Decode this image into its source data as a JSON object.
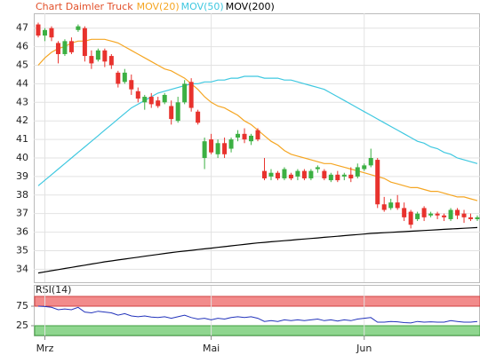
{
  "chart_data": {
    "type": "candlestick",
    "title": "Chart Daimler Truck",
    "categories": [
      null,
      "Mrz",
      null,
      null,
      null,
      null,
      null,
      null,
      null,
      null,
      null,
      null,
      null,
      null,
      null,
      null,
      null,
      null,
      null,
      null,
      null,
      null,
      null,
      null,
      null,
      null,
      "Mai",
      null,
      null,
      null,
      null,
      null,
      null,
      null,
      null,
      null,
      null,
      null,
      null,
      null,
      null,
      null,
      null,
      null,
      null,
      null,
      null,
      null,
      null,
      "Jun",
      null,
      null,
      null,
      null,
      null,
      null,
      null,
      null,
      null,
      null,
      null,
      null,
      null,
      null,
      null,
      null,
      null
    ],
    "open": [
      47.2,
      46.6,
      47.0,
      46.2,
      45.6,
      46.3,
      46.9,
      47.0,
      45.5,
      45.3,
      45.8,
      45.5,
      44.6,
      44.1,
      44.2,
      43.6,
      43.0,
      43.3,
      43.1,
      43.0,
      42.8,
      42.0,
      43.0,
      44.1,
      42.5,
      40.0,
      41.0,
      40.2,
      40.8,
      40.5,
      41.1,
      41.3,
      40.9,
      41.5,
      39.3,
      39.0,
      39.2,
      38.9,
      39.1,
      39.0,
      39.3,
      38.9,
      39.4,
      39.3,
      38.8,
      39.1,
      39.0,
      39.1,
      39.0,
      39.4,
      39.6,
      39.9,
      37.5,
      37.3,
      37.6,
      37.3,
      37.1,
      36.7,
      37.3,
      36.9,
      37.0,
      36.9,
      36.7,
      37.2,
      37.0,
      36.8,
      36.7
    ],
    "high": [
      47.3,
      47.0,
      47.1,
      46.3,
      46.4,
      46.5,
      47.2,
      47.1,
      45.8,
      45.9,
      45.9,
      45.6,
      44.7,
      44.8,
      44.5,
      43.8,
      43.4,
      43.5,
      43.3,
      43.5,
      43.1,
      43.3,
      44.2,
      44.3,
      42.6,
      41.1,
      41.3,
      41.0,
      41.1,
      41.1,
      41.5,
      41.6,
      41.3,
      41.6,
      40.0,
      39.4,
      39.3,
      39.5,
      39.2,
      39.4,
      39.4,
      39.4,
      39.6,
      39.4,
      39.2,
      39.3,
      39.2,
      39.5,
      39.7,
      39.7,
      40.5,
      40.0,
      37.9,
      37.8,
      38.0,
      37.6,
      37.2,
      37.1,
      37.4,
      37.1,
      37.1,
      37.0,
      37.3,
      37.3,
      37.2,
      37.0,
      36.9
    ],
    "low": [
      46.5,
      46.3,
      46.3,
      45.1,
      45.5,
      45.6,
      46.8,
      45.2,
      44.8,
      45.2,
      44.9,
      44.8,
      43.8,
      44.0,
      43.4,
      43.0,
      42.6,
      42.7,
      42.7,
      42.9,
      41.8,
      41.9,
      42.9,
      42.5,
      41.8,
      39.4,
      40.2,
      40.0,
      40.0,
      40.3,
      40.9,
      40.8,
      40.7,
      40.9,
      38.8,
      38.8,
      38.8,
      38.8,
      38.8,
      38.8,
      38.8,
      38.8,
      39.2,
      38.8,
      38.7,
      38.7,
      38.8,
      38.7,
      38.9,
      39.3,
      39.5,
      37.3,
      37.1,
      37.2,
      37.2,
      36.6,
      36.2,
      36.6,
      36.6,
      36.8,
      36.7,
      36.6,
      36.6,
      36.7,
      36.5,
      36.6,
      36.6
    ],
    "close": [
      46.6,
      46.9,
      46.5,
      45.6,
      46.3,
      45.7,
      47.1,
      45.5,
      45.1,
      45.8,
      45.2,
      45.0,
      44.0,
      44.6,
      43.7,
      43.2,
      43.3,
      42.9,
      42.8,
      43.4,
      42.1,
      43.0,
      44.0,
      42.7,
      41.9,
      40.9,
      40.3,
      40.8,
      40.2,
      41.0,
      41.3,
      41.0,
      41.2,
      41.0,
      38.9,
      39.2,
      38.9,
      39.4,
      38.9,
      39.3,
      38.9,
      39.3,
      39.5,
      38.9,
      39.1,
      38.8,
      39.1,
      38.9,
      39.5,
      39.6,
      40.0,
      37.5,
      37.2,
      37.6,
      37.3,
      36.8,
      36.4,
      37.0,
      36.8,
      37.0,
      36.9,
      36.8,
      37.2,
      36.9,
      36.8,
      36.7,
      36.8
    ],
    "up_color": "#3cb043",
    "down_color": "#e8322d",
    "lines": [
      {
        "name": "MOV(20)",
        "color": "#f5a623",
        "values": [
          45.0,
          45.4,
          45.7,
          45.9,
          46.0,
          46.2,
          46.3,
          46.3,
          46.4,
          46.4,
          46.4,
          46.3,
          46.2,
          46.0,
          45.8,
          45.6,
          45.4,
          45.2,
          45.0,
          44.8,
          44.7,
          44.5,
          44.3,
          44.0,
          43.7,
          43.3,
          43.0,
          42.8,
          42.7,
          42.5,
          42.3,
          42.0,
          41.8,
          41.5,
          41.2,
          40.9,
          40.7,
          40.4,
          40.2,
          40.1,
          40.0,
          39.9,
          39.8,
          39.7,
          39.7,
          39.6,
          39.5,
          39.4,
          39.3,
          39.2,
          39.1,
          39.0,
          38.9,
          38.7,
          38.6,
          38.5,
          38.4,
          38.4,
          38.3,
          38.2,
          38.2,
          38.1,
          38.0,
          37.9,
          37.9,
          37.8,
          37.7
        ]
      },
      {
        "name": "MOV(50)",
        "color": "#3fc8e0",
        "values": [
          38.5,
          38.8,
          39.1,
          39.4,
          39.7,
          40.0,
          40.3,
          40.6,
          40.9,
          41.2,
          41.5,
          41.8,
          42.1,
          42.4,
          42.7,
          42.9,
          43.1,
          43.3,
          43.5,
          43.6,
          43.7,
          43.8,
          43.9,
          44.0,
          44.0,
          44.1,
          44.1,
          44.2,
          44.2,
          44.3,
          44.3,
          44.4,
          44.4,
          44.4,
          44.3,
          44.3,
          44.3,
          44.2,
          44.2,
          44.1,
          44.0,
          43.9,
          43.8,
          43.7,
          43.5,
          43.3,
          43.1,
          42.9,
          42.7,
          42.5,
          42.3,
          42.1,
          41.9,
          41.7,
          41.5,
          41.3,
          41.1,
          40.9,
          40.8,
          40.6,
          40.5,
          40.3,
          40.2,
          40.0,
          39.9,
          39.8,
          39.7
        ]
      },
      {
        "name": "MOV(200)",
        "color": "#000000",
        "values": [
          33.8,
          33.86,
          33.92,
          33.98,
          34.04,
          34.1,
          34.16,
          34.22,
          34.28,
          34.34,
          34.4,
          34.45,
          34.5,
          34.55,
          34.6,
          34.65,
          34.7,
          34.75,
          34.8,
          34.85,
          34.9,
          34.94,
          34.98,
          35.02,
          35.06,
          35.1,
          35.14,
          35.18,
          35.22,
          35.26,
          35.3,
          35.34,
          35.38,
          35.42,
          35.45,
          35.48,
          35.51,
          35.54,
          35.57,
          35.6,
          35.63,
          35.66,
          35.69,
          35.72,
          35.75,
          35.78,
          35.81,
          35.84,
          35.87,
          35.9,
          35.93,
          35.95,
          35.97,
          35.99,
          36.01,
          36.03,
          36.05,
          36.07,
          36.09,
          36.11,
          36.13,
          36.15,
          36.17,
          36.19,
          36.21,
          36.23,
          36.25
        ]
      }
    ],
    "ylim": [
      33.3,
      47.8
    ],
    "yticks": [
      34,
      35,
      36,
      37,
      38,
      39,
      40,
      41,
      42,
      43,
      44,
      45,
      46,
      47
    ],
    "grid": true,
    "rsi": {
      "title": "RSI(14)",
      "color": "#2233bb",
      "values": [
        75,
        74,
        72,
        66,
        68,
        66,
        72,
        60,
        58,
        62,
        60,
        58,
        52,
        56,
        50,
        48,
        50,
        47,
        46,
        48,
        44,
        48,
        52,
        46,
        42,
        44,
        40,
        44,
        42,
        46,
        48,
        46,
        48,
        44,
        36,
        38,
        36,
        40,
        38,
        40,
        38,
        40,
        42,
        38,
        40,
        37,
        40,
        38,
        42,
        44,
        46,
        34,
        34,
        36,
        35,
        33,
        32,
        36,
        34,
        35,
        34,
        34,
        38,
        36,
        34,
        34,
        36
      ],
      "ylim": [
        0,
        100
      ],
      "yticks": [
        25,
        75
      ],
      "upper_band_color": "#f28b8b",
      "lower_band_color": "#8fd68f"
    }
  }
}
